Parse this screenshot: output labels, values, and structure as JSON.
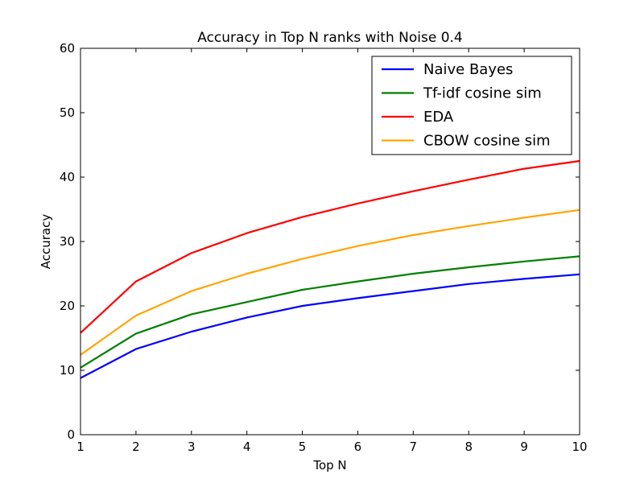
{
  "chart_data": {
    "type": "line",
    "title": "Accuracy in Top N ranks with Noise 0.4",
    "xlabel": "Top N",
    "ylabel": "Accuracy",
    "xlim": [
      1,
      10
    ],
    "ylim": [
      0,
      60
    ],
    "x": [
      1,
      2,
      3,
      4,
      5,
      6,
      7,
      8,
      9,
      10
    ],
    "xticks": [
      "1",
      "2",
      "3",
      "4",
      "5",
      "6",
      "7",
      "8",
      "9",
      "10"
    ],
    "yticks": [
      "0",
      "10",
      "20",
      "30",
      "40",
      "50",
      "60"
    ],
    "grid": false,
    "legend_position": "top-right",
    "series": [
      {
        "name": "Naive Bayes",
        "color": "#0000ff",
        "values": [
          8.8,
          13.3,
          16.0,
          18.2,
          20.0,
          21.2,
          22.3,
          23.4,
          24.2,
          24.9
        ]
      },
      {
        "name": "Tf-idf cosine sim",
        "color": "#008000",
        "values": [
          10.4,
          15.7,
          18.7,
          20.6,
          22.5,
          23.8,
          25.0,
          26.0,
          26.9,
          27.7
        ]
      },
      {
        "name": "EDA",
        "color": "#ff0000",
        "values": [
          15.8,
          23.8,
          28.2,
          31.3,
          33.8,
          35.9,
          37.8,
          39.6,
          41.3,
          42.5
        ]
      },
      {
        "name": "CBOW cosine sim",
        "color": "#ffa500",
        "values": [
          12.4,
          18.5,
          22.3,
          25.0,
          27.3,
          29.3,
          31.0,
          32.4,
          33.7,
          34.9
        ]
      }
    ]
  }
}
